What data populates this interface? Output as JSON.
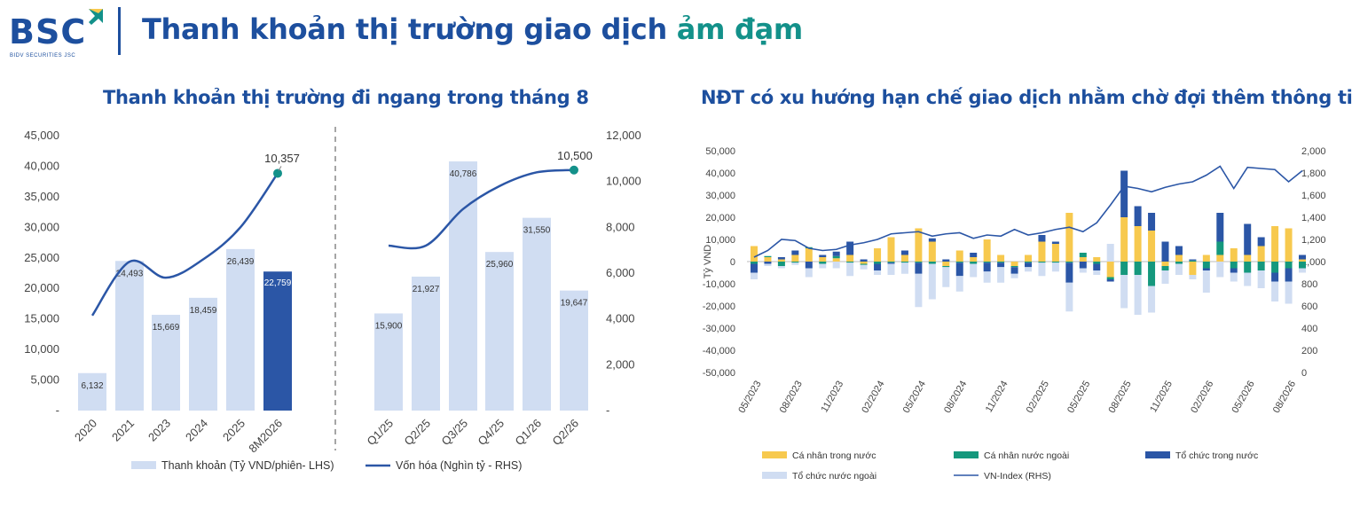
{
  "header": {
    "logo_text": "BSC",
    "logo_subtext": "BIDV SECURITIES JSC",
    "title_main": "Thanh khoản thị trường giao dịch",
    "title_accent": "ảm đạm"
  },
  "colors": {
    "brand_blue": "#1d4f9e",
    "accent_teal": "#13918a",
    "light_bar": "#d0ddf2",
    "dark_bar": "#2b56a6",
    "line": "#2b56a6",
    "ca_nhan_trong_nuoc": "#f7c94e",
    "ca_nhan_nuoc_ngoai": "#15987d",
    "to_chuc_trong_nuoc": "#2b56a6",
    "to_chuc_nuoc_ngoai": "#d0ddf2"
  },
  "chart_data": [
    {
      "type": "bar",
      "title": "Thanh khoản thị trường đi ngang trong tháng 8",
      "left_axis": {
        "ticks": [
          "-",
          "5,000",
          "10,000",
          "15,000",
          "20,000",
          "25,000",
          "30,000",
          "35,000",
          "40,000",
          "45,000"
        ],
        "ylim": [
          0,
          45000
        ]
      },
      "right_axis": {
        "ticks": [
          "-",
          "2,000",
          "4,000",
          "6,000",
          "8,000",
          "10,000",
          "12,000"
        ],
        "ylim": [
          0,
          12000
        ]
      },
      "categories": [
        "2020",
        "2021",
        "2023",
        "2024",
        "2025",
        "8M2026",
        "Q1/25",
        "Q2/25",
        "Q3/25",
        "Q4/25",
        "Q1/26",
        "Q2/26"
      ],
      "series": [
        {
          "name": "Thanh khoản (Tỷ VND/phiên- LHS)",
          "values": [
            6132,
            24493,
            15669,
            18459,
            26439,
            22759,
            15900,
            21927,
            40786,
            25960,
            31550,
            19647
          ],
          "labels": [
            "6,132",
            "24,493",
            "15,669",
            "18,459",
            "26,439",
            "22,759",
            "15,900",
            "21,927",
            "40,786",
            "25,960",
            "31,550",
            "19,647"
          ],
          "highlight_index": 5
        },
        {
          "name": "Vốn hóa (Nghìn tỷ - RHS)",
          "segment_1": [
            4150,
            6500,
            5800,
            6600,
            8000,
            10357
          ],
          "segment_2": [
            7200,
            7200,
            8800,
            9800,
            10400,
            10500
          ],
          "end_labels": [
            "10,357",
            "10,500"
          ]
        }
      ]
    },
    {
      "type": "bar",
      "title": "NĐT có xu hướng hạn chế giao dịch nhằm chờ đợi thêm thông tin",
      "ylabel": "Tỷ VND",
      "left_axis": {
        "ticks": [
          "-50,000",
          "-40,000",
          "-30,000",
          "-20,000",
          "-10,000",
          "0",
          "10,000",
          "20,000",
          "30,000",
          "40,000",
          "50,000"
        ],
        "ylim": [
          -50000,
          50000
        ]
      },
      "right_axis": {
        "ticks": [
          "0",
          "200",
          "400",
          "600",
          "800",
          "1,000",
          "1,200",
          "1,400",
          "1,600",
          "1,800",
          "2,000"
        ],
        "ylim": [
          0,
          2000
        ]
      },
      "x_tick_labels": [
        "05/2023",
        "08/2023",
        "11/2023",
        "02/2024",
        "05/2024",
        "08/2024",
        "11/2024",
        "02/2025",
        "05/2025",
        "08/2025",
        "11/2025",
        "02/2026",
        "05/2026",
        "08/2026"
      ],
      "x_tick_months_index": [
        0,
        3,
        6,
        9,
        12,
        15,
        18,
        21,
        24,
        27,
        30,
        33,
        36,
        39
      ],
      "series": [
        {
          "name": "Cá nhân trong nước",
          "values": [
            7000,
            2000,
            1000,
            3000,
            6000,
            2000,
            1500,
            3000,
            -1000,
            6000,
            11000,
            3000,
            15000,
            9000,
            -2000,
            5000,
            2000,
            10000,
            3000,
            -2000,
            3000,
            9000,
            8000,
            22000,
            2000,
            2000,
            -7000,
            20000,
            16000,
            14000,
            -2000,
            3000,
            -6000,
            3000,
            3000,
            6000,
            3000,
            7000,
            16000,
            15000,
            1000
          ]
        },
        {
          "name": "Cá nhân nước ngoài",
          "values": [
            -1000,
            500,
            -2000,
            -500,
            500,
            -1000,
            1000,
            -500,
            -500,
            -1000,
            -500,
            -500,
            -500,
            -1000,
            -500,
            -500,
            -1000,
            -500,
            -500,
            -500,
            -500,
            -500,
            -500,
            -500,
            2000,
            -1000,
            -1000,
            -6000,
            -6000,
            -11000,
            -2000,
            -1000,
            500,
            -3000,
            6000,
            -3000,
            -5000,
            -4000,
            -5000,
            -3000,
            -3000
          ]
        },
        {
          "name": "Tổ chức trong nước",
          "values": [
            -4000,
            -1000,
            1000,
            2000,
            -3000,
            1000,
            2000,
            6000,
            1000,
            -3000,
            -500,
            2000,
            -5000,
            1500,
            1000,
            -6000,
            2000,
            -4000,
            -2000,
            -3000,
            -2000,
            3000,
            1000,
            -9000,
            -3000,
            -3000,
            -1000,
            21000,
            9000,
            8000,
            9000,
            4000,
            500,
            -1000,
            13000,
            -2000,
            14000,
            4000,
            -4000,
            -6000,
            2000
          ]
        },
        {
          "name": "Tổ chức nước ngoài",
          "values": [
            -3000,
            -1000,
            -1000,
            -1000,
            -4000,
            -2000,
            -3000,
            -6000,
            -2000,
            -2000,
            -5000,
            -5000,
            -15000,
            -16000,
            -9000,
            -7000,
            -6000,
            -5000,
            -7000,
            -2000,
            -2000,
            -6000,
            -4000,
            -13000,
            -2000,
            -2000,
            8000,
            -15000,
            -18000,
            -12000,
            -6000,
            -5000,
            -2000,
            -10000,
            -7000,
            -4000,
            -6000,
            -8000,
            -9000,
            -10000,
            -2000
          ]
        },
        {
          "name": "VN-Index (RHS)",
          "values": [
            1040,
            1100,
            1200,
            1190,
            1120,
            1100,
            1110,
            1150,
            1170,
            1200,
            1250,
            1260,
            1270,
            1230,
            1250,
            1260,
            1210,
            1240,
            1230,
            1290,
            1240,
            1260,
            1290,
            1310,
            1270,
            1350,
            1510,
            1680,
            1660,
            1630,
            1670,
            1700,
            1720,
            1780,
            1860,
            1660,
            1850,
            1840,
            1830,
            1720,
            1820
          ]
        }
      ],
      "legend": [
        "Cá nhân trong nước",
        "Cá nhân nước ngoài",
        "Tổ chức trong nước",
        "Tổ chức nước ngoài",
        "VN-Index (RHS)"
      ],
      "legend_position": "bottom"
    }
  ]
}
